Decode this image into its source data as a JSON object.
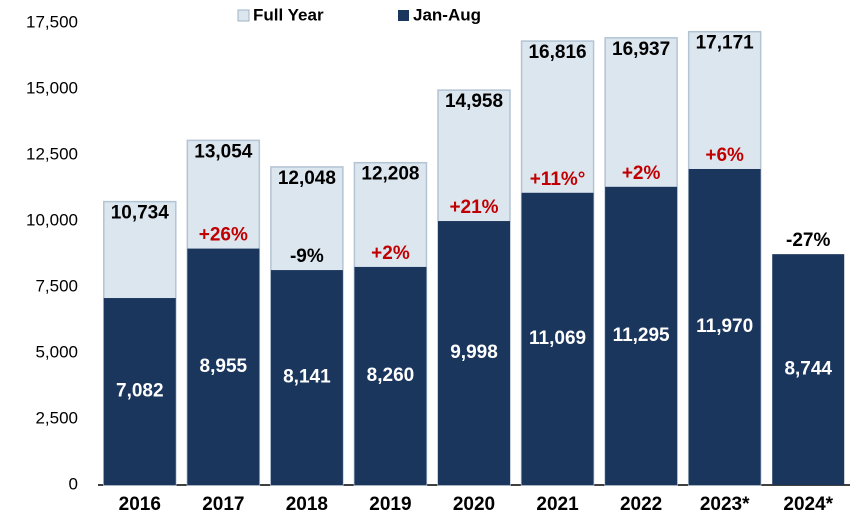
{
  "chart_data": {
    "type": "overlap-bar",
    "categories": [
      "2016",
      "2017",
      "2018",
      "2019",
      "2020",
      "2021",
      "2022",
      "2023*",
      "2024*"
    ],
    "series": [
      {
        "name": "Full Year",
        "color": "#dce6ef",
        "values": [
          10734,
          13054,
          12048,
          12208,
          14958,
          16816,
          16937,
          17171,
          null
        ],
        "value_labels": [
          "10,734",
          "13,054",
          "12,048",
          "12,208",
          "14,958",
          "16,816",
          "16,937",
          "17,171",
          null
        ]
      },
      {
        "name": "Jan-Aug",
        "color": "#1b365d",
        "values": [
          7082,
          8955,
          8141,
          8260,
          9998,
          11069,
          11295,
          11970,
          8744
        ],
        "value_labels": [
          "7,082",
          "8,955",
          "8,141",
          "8,260",
          "9,998",
          "11,069",
          "11,295",
          "11,970",
          "8,744"
        ]
      }
    ],
    "change_labels": [
      null,
      "+26%",
      "-9%",
      "+2%",
      "+21%",
      "+11%°",
      "+2%",
      "+6%",
      "-27%"
    ],
    "ylim": [
      0,
      17500
    ],
    "yticks": [
      0,
      {
        "value": 2500,
        "label": "2,500"
      },
      {
        "value": 5000,
        "label": "5,000"
      },
      {
        "value": 7500,
        "label": "7,500"
      },
      {
        "value": 10000,
        "label": "10,000"
      },
      {
        "value": 12500,
        "label": "12,500"
      },
      {
        "value": 15000,
        "label": "15,000"
      },
      {
        "value": 17500,
        "label": "17,500"
      }
    ],
    "grid": false
  }
}
